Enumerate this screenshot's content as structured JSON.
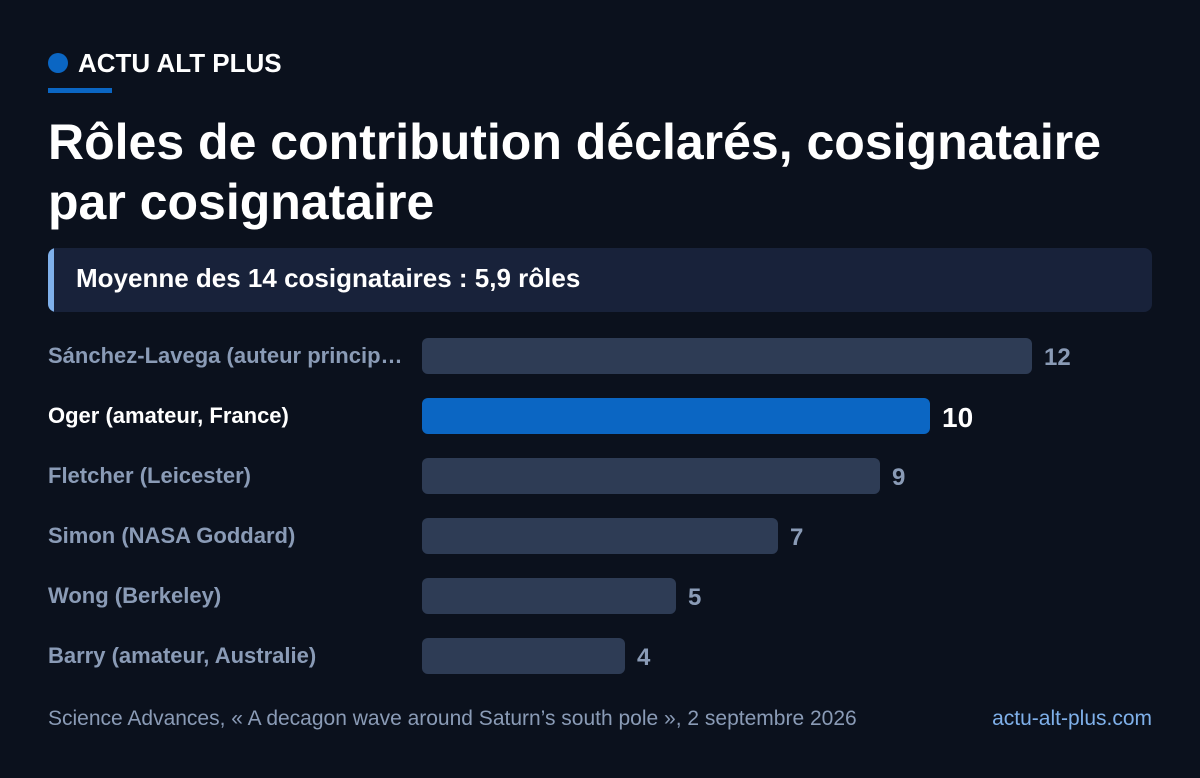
{
  "brand": {
    "name": "ACTU ALT PLUS",
    "accent": "#0b66c3"
  },
  "title": "Rôles de contribution déclarés, cosignataire par cosignataire",
  "callout": "Moyenne des 14 cosignataires : 5,9 rôles",
  "chart_data": {
    "type": "bar",
    "orientation": "horizontal",
    "categories": [
      "Sánchez-Lavega (auteur principal)",
      "Oger (amateur, France)",
      "Fletcher (Leicester)",
      "Simon (NASA Goddard)",
      "Wong (Berkeley)",
      "Barry (amateur, Australie)"
    ],
    "display_labels": [
      "Sánchez-Lavega (auteur princip…",
      "Oger (amateur, France)",
      "Fletcher (Leicester)",
      "Simon (NASA Goddard)",
      "Wong (Berkeley)",
      "Barry (amateur, Australie)"
    ],
    "values": [
      12,
      10,
      9,
      7,
      5,
      4
    ],
    "highlight_index": 1,
    "xlim": [
      0,
      12
    ],
    "colors": {
      "bar": "#2e3c55",
      "highlight": "#0b66c3"
    },
    "grid": false,
    "legend": false
  },
  "footer": {
    "source": "Science Advances, « A decagon wave around Saturn’s south pole », 2 septembre 2026",
    "site": "actu-alt-plus.com"
  }
}
